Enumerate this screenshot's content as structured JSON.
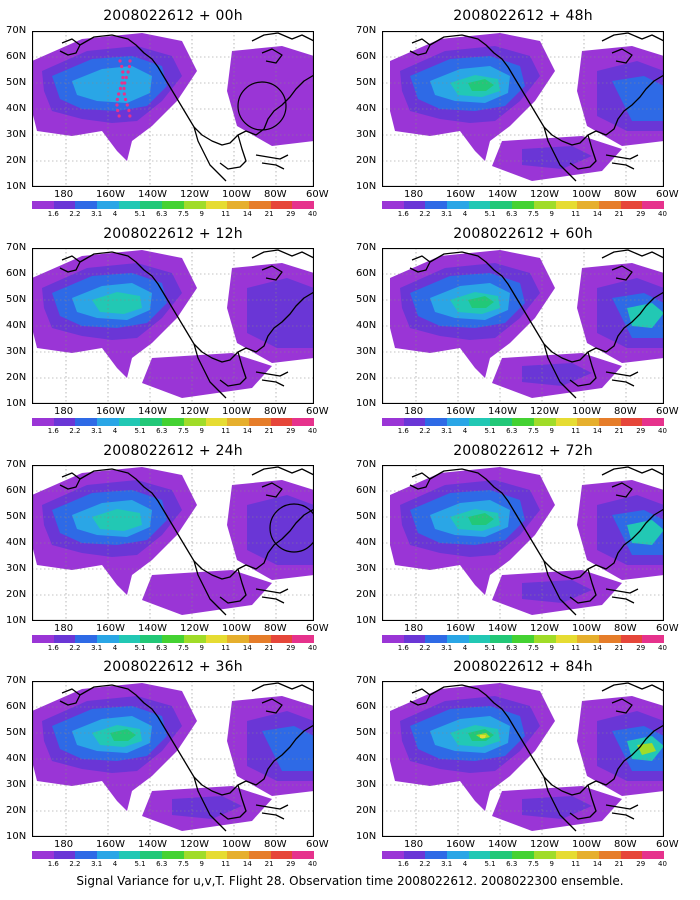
{
  "caption": "Signal Variance for u,v,T. Flight 28. Observation time 2008022612. 2008022300 ensemble.",
  "lat_ticks": [
    "70N",
    "60N",
    "50N",
    "40N",
    "30N",
    "20N",
    "10N"
  ],
  "lon_ticks": [
    "180",
    "160W",
    "140W",
    "120W",
    "100W",
    "80W",
    "60W"
  ],
  "colorbar": {
    "labels": [
      "1.6",
      "2.2",
      "3.1",
      "4",
      "5.1",
      "6.3",
      "7.5",
      "9",
      "11",
      "14",
      "21",
      "29",
      "40"
    ],
    "colors": [
      "#ffffff",
      "#9a35d6",
      "#6a36d6",
      "#2e6ae6",
      "#2aa6e6",
      "#22c8b4",
      "#22c878",
      "#44d232",
      "#a0dc28",
      "#e6dc32",
      "#e6af2d",
      "#e67d2a",
      "#e6463a",
      "#e6328c"
    ]
  },
  "panels": [
    {
      "title": "2008022612 + 00h",
      "level": 0,
      "circle": "right",
      "dotted": true
    },
    {
      "title": "2008022612 + 48h",
      "level": 2,
      "circle": "",
      "dotted": false
    },
    {
      "title": "2008022612 + 12h",
      "level": 1,
      "circle": "",
      "dotted": false
    },
    {
      "title": "2008022612 + 60h",
      "level": 3,
      "circle": "",
      "dotted": false
    },
    {
      "title": "2008022612 + 24h",
      "level": 1,
      "circle": "right",
      "dotted": false
    },
    {
      "title": "2008022612 + 72h",
      "level": 3,
      "circle": "",
      "dotted": false
    },
    {
      "title": "2008022612 + 36h",
      "level": 2,
      "circle": "",
      "dotted": false
    },
    {
      "title": "2008022612 + 84h",
      "level": 4,
      "circle": "",
      "dotted": false
    }
  ]
}
